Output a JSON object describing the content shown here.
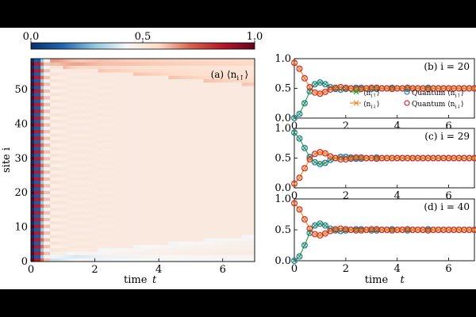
{
  "colorbar": {
    "ticks": [
      "0.0",
      "0.5",
      "1.0"
    ],
    "colors": [
      "#08306b",
      "#2166ac",
      "#92c5de",
      "#f7f7f7",
      "#fddbc7",
      "#d6604d",
      "#b2182b",
      "#67001f"
    ]
  },
  "chart_data": [
    {
      "type": "heatmap",
      "panel": "(a)",
      "annotation": "(a) ⟨n_{i↑}⟩",
      "xlabel": "time t",
      "ylabel": "site i",
      "xlim": [
        0,
        7
      ],
      "ylim": [
        0,
        59
      ],
      "xticks": [
        "0",
        "2",
        "4",
        "6"
      ],
      "yticks": [
        "0",
        "10",
        "20",
        "30",
        "40",
        "50"
      ],
      "value_range": [
        0,
        1
      ],
      "description_values": {
        "t0_pattern": "alternating 1.0 / 0.0 on even / odd sites",
        "bulk_after_t1": 0.5,
        "top_edge_front": 0.62,
        "bottom_edge_front": 0.4
      }
    },
    {
      "type": "line",
      "panel": "(b)",
      "annotation": "(b) i = 20",
      "xlim": [
        0,
        7
      ],
      "ylim": [
        0,
        1
      ],
      "xticks": [
        "0",
        "2",
        "4",
        "6"
      ],
      "yticks": [
        "0.0",
        "0.5",
        "1.0"
      ],
      "x": [
        0,
        0.2,
        0.4,
        0.6,
        0.8,
        1.0,
        1.2,
        1.4,
        1.6,
        1.8,
        2.0,
        2.2,
        2.4,
        2.6,
        2.8,
        3.0,
        3.2,
        3.4,
        3.6,
        3.8,
        4.0,
        4.2,
        4.4,
        4.6,
        4.8,
        5.0,
        5.2,
        5.4,
        5.6,
        5.8,
        6.0,
        6.2,
        6.4,
        6.6,
        6.8,
        7.0
      ],
      "series": [
        {
          "name": "⟨n_{i↑}⟩",
          "marker": "x",
          "color": "#2ca02c",
          "values": [
            0.0,
            0.07,
            0.25,
            0.45,
            0.57,
            0.6,
            0.57,
            0.52,
            0.49,
            0.48,
            0.49,
            0.5,
            0.51,
            0.51,
            0.5,
            0.49,
            0.49,
            0.5,
            0.5,
            0.51,
            0.5,
            0.5,
            0.49,
            0.5,
            0.5,
            0.5,
            0.51,
            0.5,
            0.5,
            0.5,
            0.5,
            0.5,
            0.5,
            0.5,
            0.5,
            0.5
          ]
        },
        {
          "name": "⟨n_{i↓}⟩",
          "marker": "x",
          "color": "#ff7f0e",
          "values": [
            0.93,
            0.83,
            0.67,
            0.52,
            0.43,
            0.41,
            0.44,
            0.48,
            0.51,
            0.52,
            0.51,
            0.5,
            0.49,
            0.49,
            0.5,
            0.51,
            0.51,
            0.5,
            0.5,
            0.49,
            0.5,
            0.5,
            0.51,
            0.5,
            0.5,
            0.5,
            0.49,
            0.5,
            0.5,
            0.5,
            0.5,
            0.5,
            0.5,
            0.5,
            0.5,
            0.5
          ]
        },
        {
          "name": "Quantum ⟨n_{i↑}⟩",
          "marker": "circle",
          "color": "#1f77b4",
          "follows": "⟨n_{i↑}⟩"
        },
        {
          "name": "Quantum ⟨n_{i↓}⟩",
          "marker": "circle",
          "color": "#d62728",
          "follows": "⟨n_{i↓}⟩"
        }
      ]
    },
    {
      "type": "line",
      "panel": "(c)",
      "annotation": "(c) i = 29",
      "xlim": [
        0,
        7
      ],
      "ylim": [
        0,
        1
      ],
      "xticks": [
        "0",
        "2",
        "4",
        "6"
      ],
      "yticks": [
        "0.0",
        "0.5",
        "1.0"
      ],
      "x": [
        0,
        0.2,
        0.4,
        0.6,
        0.8,
        1.0,
        1.2,
        1.4,
        1.6,
        1.8,
        2.0,
        2.2,
        2.4,
        2.6,
        2.8,
        3.0,
        3.2,
        3.4,
        3.6,
        3.8,
        4.0,
        4.2,
        4.4,
        4.6,
        4.8,
        5.0,
        5.2,
        5.4,
        5.6,
        5.8,
        6.0,
        6.2,
        6.4,
        6.6,
        6.8,
        7.0
      ],
      "series": [
        {
          "name": "⟨n_{i↑}⟩",
          "marker": "x",
          "color": "#2ca02c",
          "values": [
            0.93,
            0.83,
            0.67,
            0.52,
            0.43,
            0.4,
            0.42,
            0.47,
            0.5,
            0.52,
            0.52,
            0.51,
            0.49,
            0.49,
            0.5,
            0.5,
            0.51,
            0.5,
            0.5,
            0.5,
            0.5,
            0.5,
            0.5,
            0.5,
            0.5,
            0.5,
            0.5,
            0.5,
            0.5,
            0.5,
            0.5,
            0.5,
            0.5,
            0.5,
            0.5,
            0.5
          ]
        },
        {
          "name": "⟨n_{i↓}⟩",
          "marker": "x",
          "color": "#ff7f0e",
          "values": [
            0.07,
            0.17,
            0.33,
            0.48,
            0.57,
            0.6,
            0.58,
            0.53,
            0.5,
            0.48,
            0.48,
            0.49,
            0.51,
            0.51,
            0.5,
            0.5,
            0.49,
            0.5,
            0.5,
            0.5,
            0.5,
            0.5,
            0.5,
            0.5,
            0.5,
            0.5,
            0.5,
            0.5,
            0.5,
            0.5,
            0.5,
            0.5,
            0.5,
            0.5,
            0.5,
            0.5
          ]
        }
      ]
    },
    {
      "type": "line",
      "panel": "(d)",
      "annotation": "(d) i = 40",
      "xlabel": "time t",
      "xlim": [
        0,
        7
      ],
      "ylim": [
        0,
        1
      ],
      "xticks": [
        "0",
        "2",
        "4",
        "6"
      ],
      "yticks": [
        "0.0",
        "0.5",
        "1.0"
      ],
      "x": [
        0,
        0.2,
        0.4,
        0.6,
        0.8,
        1.0,
        1.2,
        1.4,
        1.6,
        1.8,
        2.0,
        2.2,
        2.4,
        2.6,
        2.8,
        3.0,
        3.2,
        3.4,
        3.6,
        3.8,
        4.0,
        4.2,
        4.4,
        4.6,
        4.8,
        5.0,
        5.2,
        5.4,
        5.6,
        5.8,
        6.0,
        6.2,
        6.4,
        6.6,
        6.8,
        7.0
      ],
      "series": [
        {
          "name": "⟨n_{i↑}⟩",
          "marker": "x",
          "color": "#2ca02c",
          "values": [
            0.0,
            0.07,
            0.25,
            0.45,
            0.57,
            0.6,
            0.57,
            0.52,
            0.49,
            0.48,
            0.49,
            0.5,
            0.51,
            0.51,
            0.5,
            0.49,
            0.49,
            0.5,
            0.5,
            0.51,
            0.5,
            0.5,
            0.49,
            0.5,
            0.5,
            0.5,
            0.51,
            0.5,
            0.5,
            0.5,
            0.5,
            0.5,
            0.5,
            0.5,
            0.5,
            0.5
          ]
        },
        {
          "name": "⟨n_{i↓}⟩",
          "marker": "x",
          "color": "#ff7f0e",
          "values": [
            0.93,
            0.83,
            0.67,
            0.52,
            0.43,
            0.41,
            0.44,
            0.48,
            0.51,
            0.52,
            0.51,
            0.5,
            0.49,
            0.49,
            0.5,
            0.51,
            0.51,
            0.5,
            0.5,
            0.49,
            0.5,
            0.5,
            0.51,
            0.5,
            0.5,
            0.5,
            0.49,
            0.5,
            0.5,
            0.5,
            0.5,
            0.5,
            0.5,
            0.5,
            0.5,
            0.5
          ]
        }
      ]
    }
  ]
}
